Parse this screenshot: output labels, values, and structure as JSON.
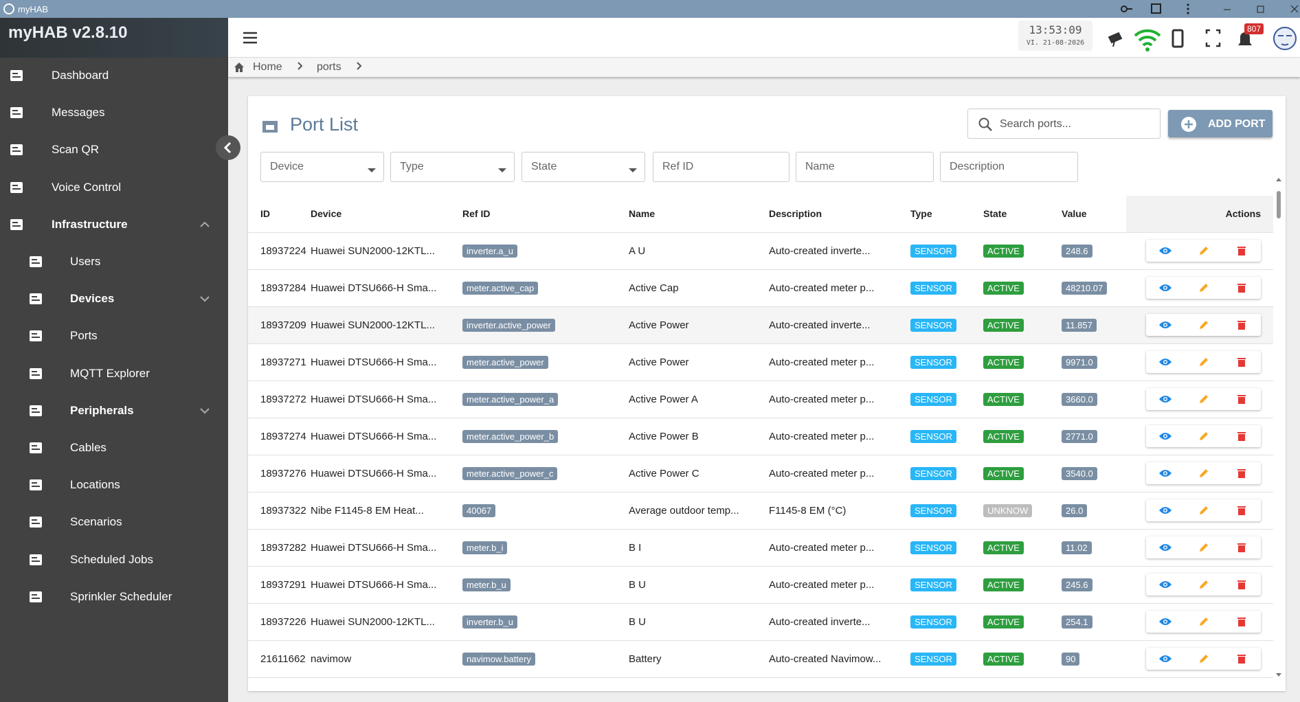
{
  "window": {
    "title": "myHAB"
  },
  "app": {
    "name": "myHAB v2.8.10"
  },
  "sidebar": {
    "items": [
      {
        "label": "Dashboard"
      },
      {
        "label": "Messages"
      },
      {
        "label": "Scan QR"
      },
      {
        "label": "Voice Control"
      },
      {
        "label": "Infrastructure",
        "expanded": true,
        "children": [
          {
            "label": "Users"
          },
          {
            "label": "Devices",
            "expanded": false
          },
          {
            "label": "Ports"
          },
          {
            "label": "MQTT Explorer"
          },
          {
            "label": "Peripherals",
            "expanded": false
          },
          {
            "label": "Cables"
          },
          {
            "label": "Locations"
          },
          {
            "label": "Scenarios"
          },
          {
            "label": "Scheduled Jobs"
          },
          {
            "label": "Sprinkler Scheduler"
          }
        ]
      }
    ]
  },
  "header": {
    "time": "13:53:09",
    "date": "VI. 21-08-2026",
    "notifications": "807"
  },
  "breadcrumb": [
    "Home",
    "ports"
  ],
  "page": {
    "title": "Port List",
    "search_placeholder": "Search ports...",
    "add_button": "ADD PORT",
    "filters": [
      {
        "label": "Device",
        "dropdown": true
      },
      {
        "label": "Type",
        "dropdown": true
      },
      {
        "label": "State",
        "dropdown": true
      },
      {
        "label": "Ref ID",
        "dropdown": false
      },
      {
        "label": "Name",
        "dropdown": false
      },
      {
        "label": "Description",
        "dropdown": false
      }
    ],
    "chip_colors": {
      "SENSOR": "#29b6f6",
      "ACTIVE": "#2e9e3f",
      "UNKNOW": "#bdbdbd"
    },
    "table": {
      "columns": [
        "ID",
        "Device",
        "Ref ID",
        "Name",
        "Description",
        "Type",
        "State",
        "Value",
        "Actions"
      ],
      "rows": [
        [
          "18937224",
          "Huawei SUN2000-12KTL...",
          "inverter.a_u",
          "A U",
          "Auto-created inverte...",
          "SENSOR",
          "ACTIVE",
          "248.6"
        ],
        [
          "18937284",
          "Huawei DTSU666-H Sma...",
          "meter.active_cap",
          "Active Cap",
          "Auto-created meter p...",
          "SENSOR",
          "ACTIVE",
          "48210.07"
        ],
        [
          "18937209",
          "Huawei SUN2000-12KTL...",
          "inverter.active_power",
          "Active Power",
          "Auto-created inverte...",
          "SENSOR",
          "ACTIVE",
          "11.857"
        ],
        [
          "18937271",
          "Huawei DTSU666-H Sma...",
          "meter.active_power",
          "Active Power",
          "Auto-created meter p...",
          "SENSOR",
          "ACTIVE",
          "9971.0"
        ],
        [
          "18937272",
          "Huawei DTSU666-H Sma...",
          "meter.active_power_a",
          "Active Power A",
          "Auto-created meter p...",
          "SENSOR",
          "ACTIVE",
          "3660.0"
        ],
        [
          "18937274",
          "Huawei DTSU666-H Sma...",
          "meter.active_power_b",
          "Active Power B",
          "Auto-created meter p...",
          "SENSOR",
          "ACTIVE",
          "2771.0"
        ],
        [
          "18937276",
          "Huawei DTSU666-H Sma...",
          "meter.active_power_c",
          "Active Power C",
          "Auto-created meter p...",
          "SENSOR",
          "ACTIVE",
          "3540.0"
        ],
        [
          "18937322",
          "Nibe F1145-8 EM Heat...",
          "40067",
          "Average outdoor temp...",
          "F1145-8 EM (°C)",
          "SENSOR",
          "UNKNOW",
          "26.0"
        ],
        [
          "18937282",
          "Huawei DTSU666-H Sma...",
          "meter.b_i",
          "B I",
          "Auto-created meter p...",
          "SENSOR",
          "ACTIVE",
          "11.02"
        ],
        [
          "18937291",
          "Huawei DTSU666-H Sma...",
          "meter.b_u",
          "B U",
          "Auto-created meter p...",
          "SENSOR",
          "ACTIVE",
          "245.6"
        ],
        [
          "18937226",
          "Huawei SUN2000-12KTL...",
          "inverter.b_u",
          "B U",
          "Auto-created inverte...",
          "SENSOR",
          "ACTIVE",
          "254.1"
        ],
        [
          "21611662",
          "navimow",
          "navimow.battery",
          "Battery",
          "Auto-created Navimow...",
          "SENSOR",
          "ACTIVE",
          "90"
        ]
      ]
    }
  }
}
